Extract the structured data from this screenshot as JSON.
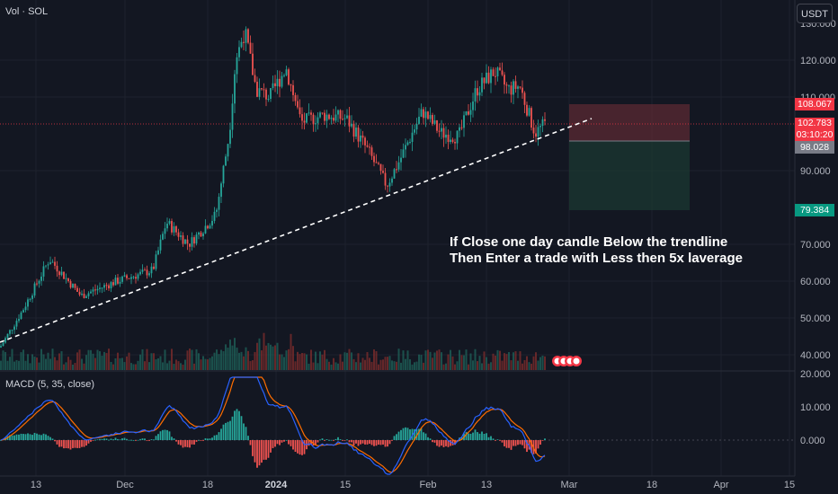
{
  "header": {
    "symbol_label": "Vol · SOL",
    "currency_button": "USDT"
  },
  "price_axis": {
    "ticks": [
      "120.000",
      "110.000",
      "90.000",
      "70.000",
      "60.000",
      "50.000",
      "40.000"
    ],
    "tick_values": [
      120,
      110,
      90,
      70,
      60,
      50,
      40
    ],
    "partial_top_tick": "130.000"
  },
  "price_tags": {
    "target": {
      "label": "108.067",
      "color": "#f23645"
    },
    "current": {
      "label": "102.783",
      "countdown": "03:10:20",
      "color": "#f23645"
    },
    "entry": {
      "label": "98.028",
      "color": "#787b86"
    },
    "stop": {
      "label": "79.384",
      "color": "#089981"
    }
  },
  "macd": {
    "label": "MACD (5, 35, close)",
    "ticks": [
      "20.000",
      "10.000",
      "0.000"
    ],
    "tick_values": [
      20,
      10,
      0
    ]
  },
  "time_axis": {
    "labels": [
      "13",
      "Dec",
      "18",
      "2024",
      "15",
      "Feb",
      "13",
      "Mar",
      "18",
      "Apr",
      "15"
    ]
  },
  "annotation": {
    "line1": "If Close one day candle Below the trendline",
    "line2": "Then Enter a trade with Less then 5x laverage"
  },
  "colors": {
    "background": "#131722",
    "bull": "#26a69a",
    "bear": "#ef5350",
    "macd_line": "#2962ff",
    "signal_line": "#ff6d00",
    "grid": "#1e222d"
  }
}
